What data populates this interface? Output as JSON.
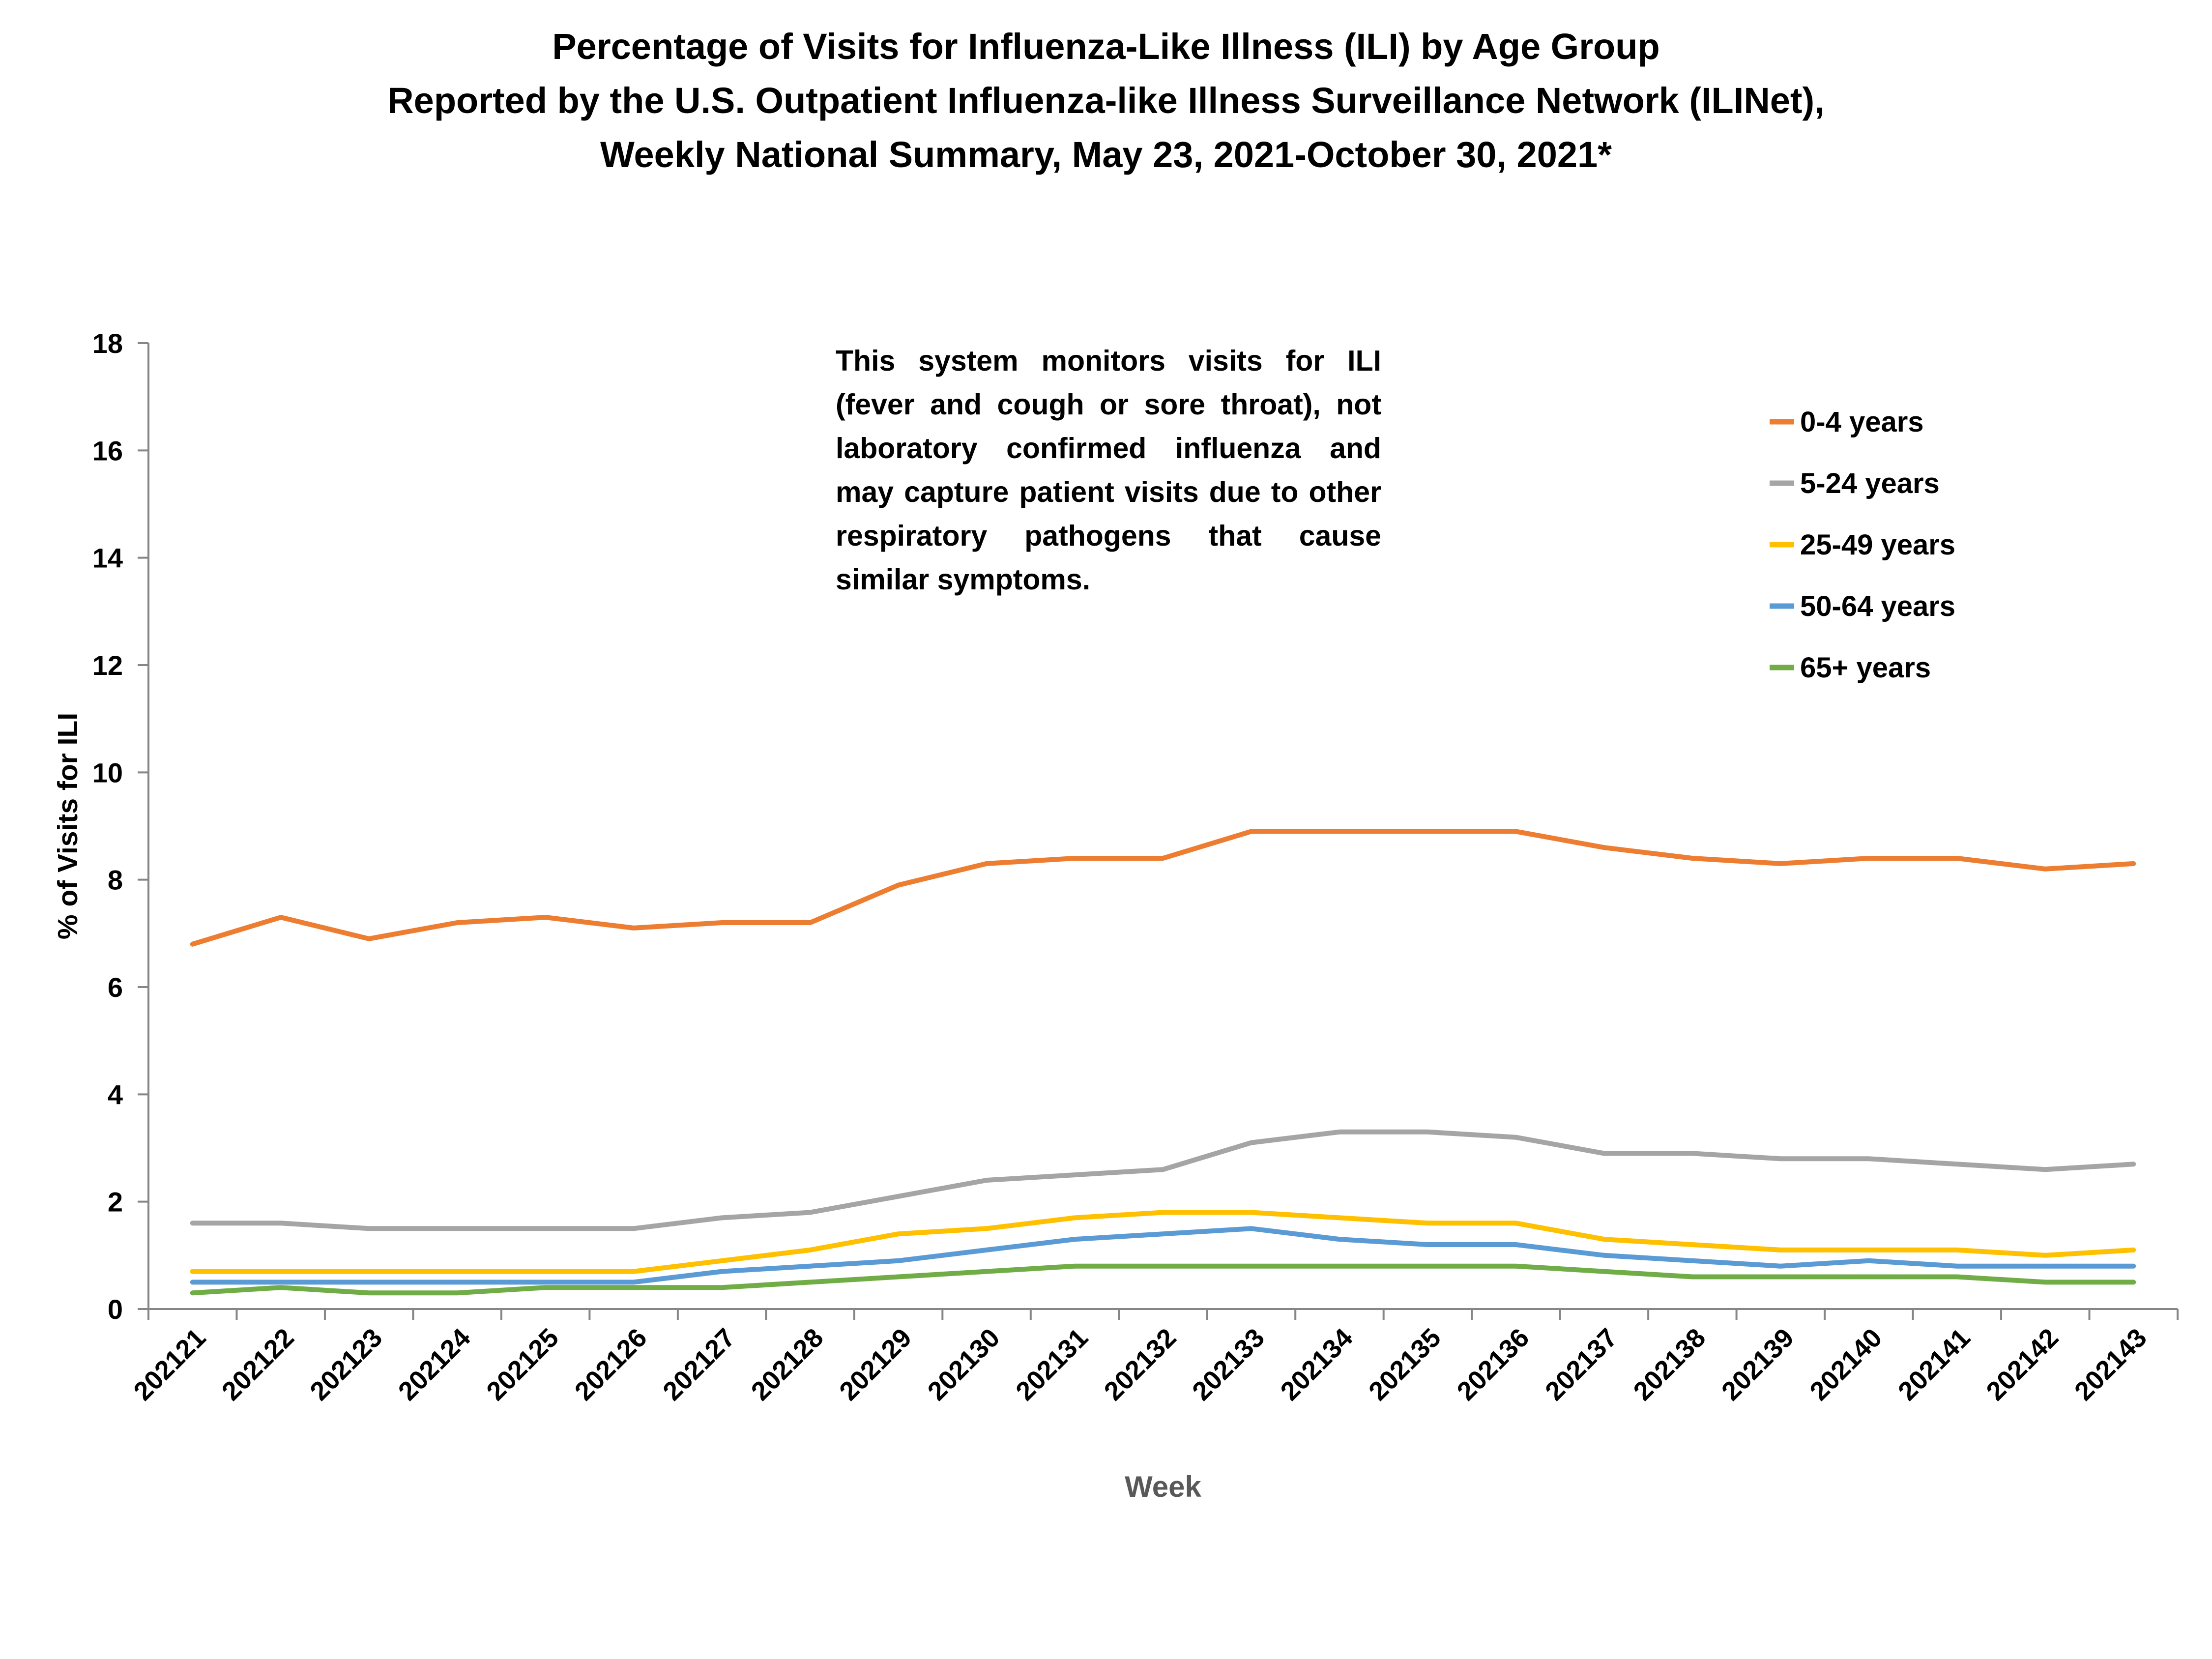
{
  "chart_data": {
    "type": "line",
    "title_lines": [
      "Percentage of Visits for Influenza-Like Illness (ILI) by Age Group",
      "Reported by the U.S. Outpatient Influenza-like Illness Surveillance Network (ILINet),",
      "Weekly National Summary, May 23, 2021-October 30, 2021*"
    ],
    "xlabel": "Week",
    "ylabel": "% of Visits for ILI",
    "ylim": [
      0,
      18
    ],
    "yticks": [
      "0",
      "2",
      "4",
      "6",
      "8",
      "10",
      "12",
      "14",
      "16",
      "18"
    ],
    "categories": [
      "202121",
      "202122",
      "202123",
      "202124",
      "202125",
      "202126",
      "202127",
      "202128",
      "202129",
      "202130",
      "202131",
      "202132",
      "202133",
      "202134",
      "202135",
      "202136",
      "202137",
      "202138",
      "202139",
      "202140",
      "202141",
      "202142",
      "202143"
    ],
    "series": [
      {
        "name": "0-4 years",
        "color": "#ED7D31",
        "values": [
          6.8,
          7.3,
          6.9,
          7.2,
          7.3,
          7.1,
          7.2,
          7.2,
          7.9,
          8.3,
          8.4,
          8.4,
          8.9,
          8.9,
          8.9,
          8.9,
          8.6,
          8.4,
          8.3,
          8.4,
          8.4,
          8.2,
          8.3
        ]
      },
      {
        "name": "5-24 years",
        "color": "#A5A5A5",
        "values": [
          1.6,
          1.6,
          1.5,
          1.5,
          1.5,
          1.5,
          1.7,
          1.8,
          2.1,
          2.4,
          2.5,
          2.6,
          3.1,
          3.3,
          3.3,
          3.2,
          2.9,
          2.9,
          2.8,
          2.8,
          2.7,
          2.6,
          2.7
        ]
      },
      {
        "name": "25-49 years",
        "color": "#FFC000",
        "values": [
          0.7,
          0.7,
          0.7,
          0.7,
          0.7,
          0.7,
          0.9,
          1.1,
          1.4,
          1.5,
          1.7,
          1.8,
          1.8,
          1.7,
          1.6,
          1.6,
          1.3,
          1.2,
          1.1,
          1.1,
          1.1,
          1.0,
          1.1
        ]
      },
      {
        "name": "50-64 years",
        "color": "#5B9BD5",
        "values": [
          0.5,
          0.5,
          0.5,
          0.5,
          0.5,
          0.5,
          0.7,
          0.8,
          0.9,
          1.1,
          1.3,
          1.4,
          1.5,
          1.3,
          1.2,
          1.2,
          1.0,
          0.9,
          0.8,
          0.9,
          0.8,
          0.8,
          0.8
        ]
      },
      {
        "name": "65+ years",
        "color": "#70AD47",
        "values": [
          0.3,
          0.4,
          0.3,
          0.3,
          0.4,
          0.4,
          0.4,
          0.5,
          0.6,
          0.7,
          0.8,
          0.8,
          0.8,
          0.8,
          0.8,
          0.8,
          0.7,
          0.6,
          0.6,
          0.6,
          0.6,
          0.5,
          0.5
        ]
      }
    ],
    "legend_position": "top-right",
    "annotation": "This system monitors visits for ILI (fever and cough or sore throat), not laboratory confirmed influenza and may capture patient visits due to other respiratory pathogens that cause similar symptoms."
  }
}
